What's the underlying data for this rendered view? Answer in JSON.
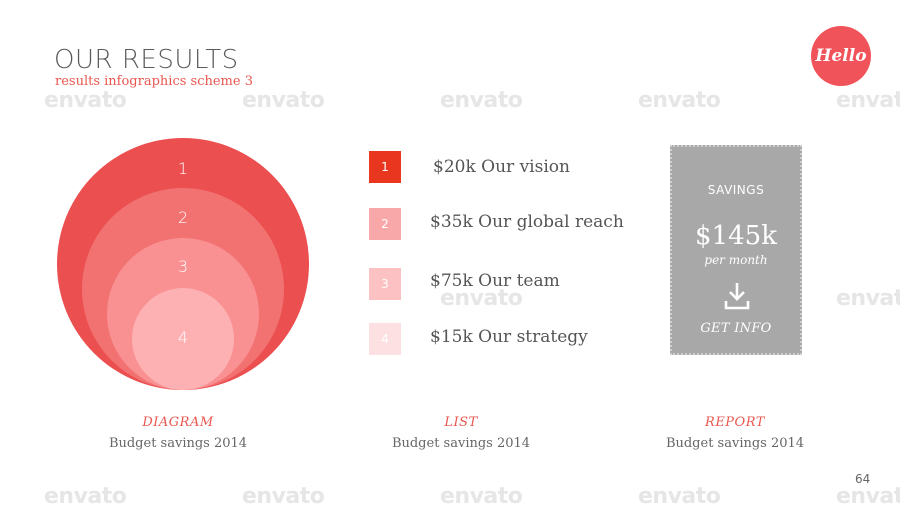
{
  "header": {
    "title": "OUR RESULTS",
    "subtitle": "results infographics scheme 3",
    "logo_text": "Hello"
  },
  "watermark": "envato",
  "diagram": {
    "circles": [
      {
        "label": "1",
        "color": "#ec4f4f"
      },
      {
        "label": "2",
        "color": "#f27272"
      },
      {
        "label": "3",
        "color": "#f99193"
      },
      {
        "label": "4",
        "color": "#fdb1b3"
      }
    ],
    "caption_title": "DIAGRAM",
    "caption_sub": "Budget savings 2014"
  },
  "list": {
    "items": [
      {
        "number": "1",
        "text": "$20k Our vision",
        "color": "#e8361f"
      },
      {
        "number": "2",
        "text": "$35k Our global reach",
        "color": "#f9a8aa"
      },
      {
        "number": "3",
        "text": "$75k Our team",
        "color": "#fcc1c2"
      },
      {
        "number": "4",
        "text": "$15k Our strategy",
        "color": "#fde0e1"
      }
    ],
    "caption_title": "LIST",
    "caption_sub": "Budget savings 2014"
  },
  "report": {
    "label": "SAVINGS",
    "value": "$145k",
    "period": "per month",
    "action": "GET INFO",
    "icon": "download-icon",
    "caption_title": "REPORT",
    "caption_sub": "Budget savings 2014"
  },
  "page_number": "64"
}
